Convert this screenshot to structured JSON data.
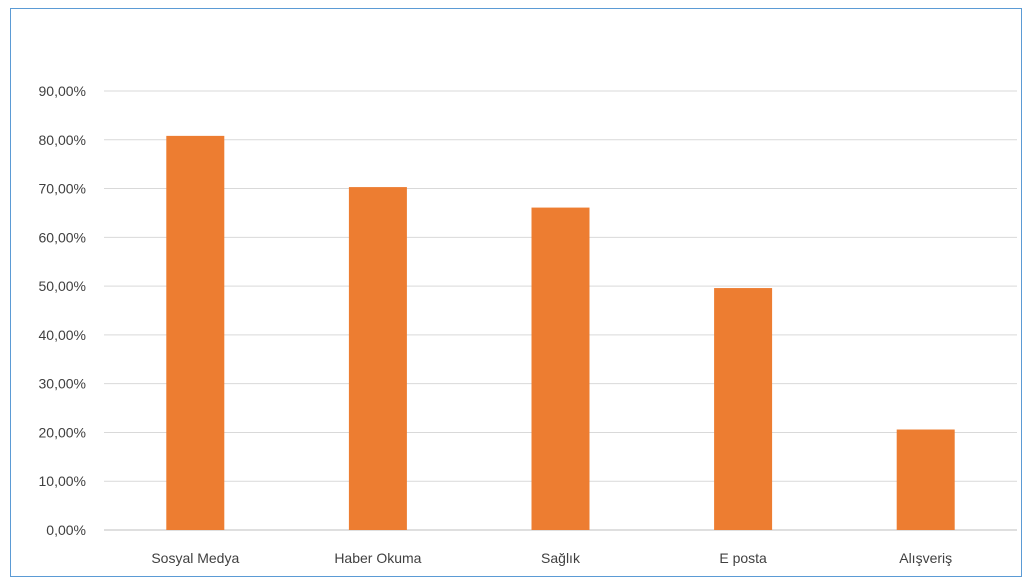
{
  "chart_data": {
    "type": "bar",
    "categories": [
      "Sosyal Medya",
      "Haber Okuma",
      "Sağlık",
      "E posta",
      "Alışveriş"
    ],
    "values": [
      80.8,
      70.3,
      66.1,
      49.6,
      20.6
    ],
    "ylim": [
      0,
      90
    ],
    "yticks": [
      0,
      10,
      20,
      30,
      40,
      50,
      60,
      70,
      80,
      90
    ],
    "ytick_labels": [
      "0,00%",
      "10,00%",
      "20,00%",
      "30,00%",
      "40,00%",
      "50,00%",
      "60,00%",
      "70,00%",
      "80,00%",
      "90,00%"
    ],
    "title": "",
    "xlabel": "",
    "ylabel": "",
    "grid": true,
    "legend": "none",
    "colors": {
      "bar": "#ed7d31",
      "grid": "#d9d9d9",
      "axis": "#bfbfbf",
      "frame": "#5b9bd5"
    }
  }
}
